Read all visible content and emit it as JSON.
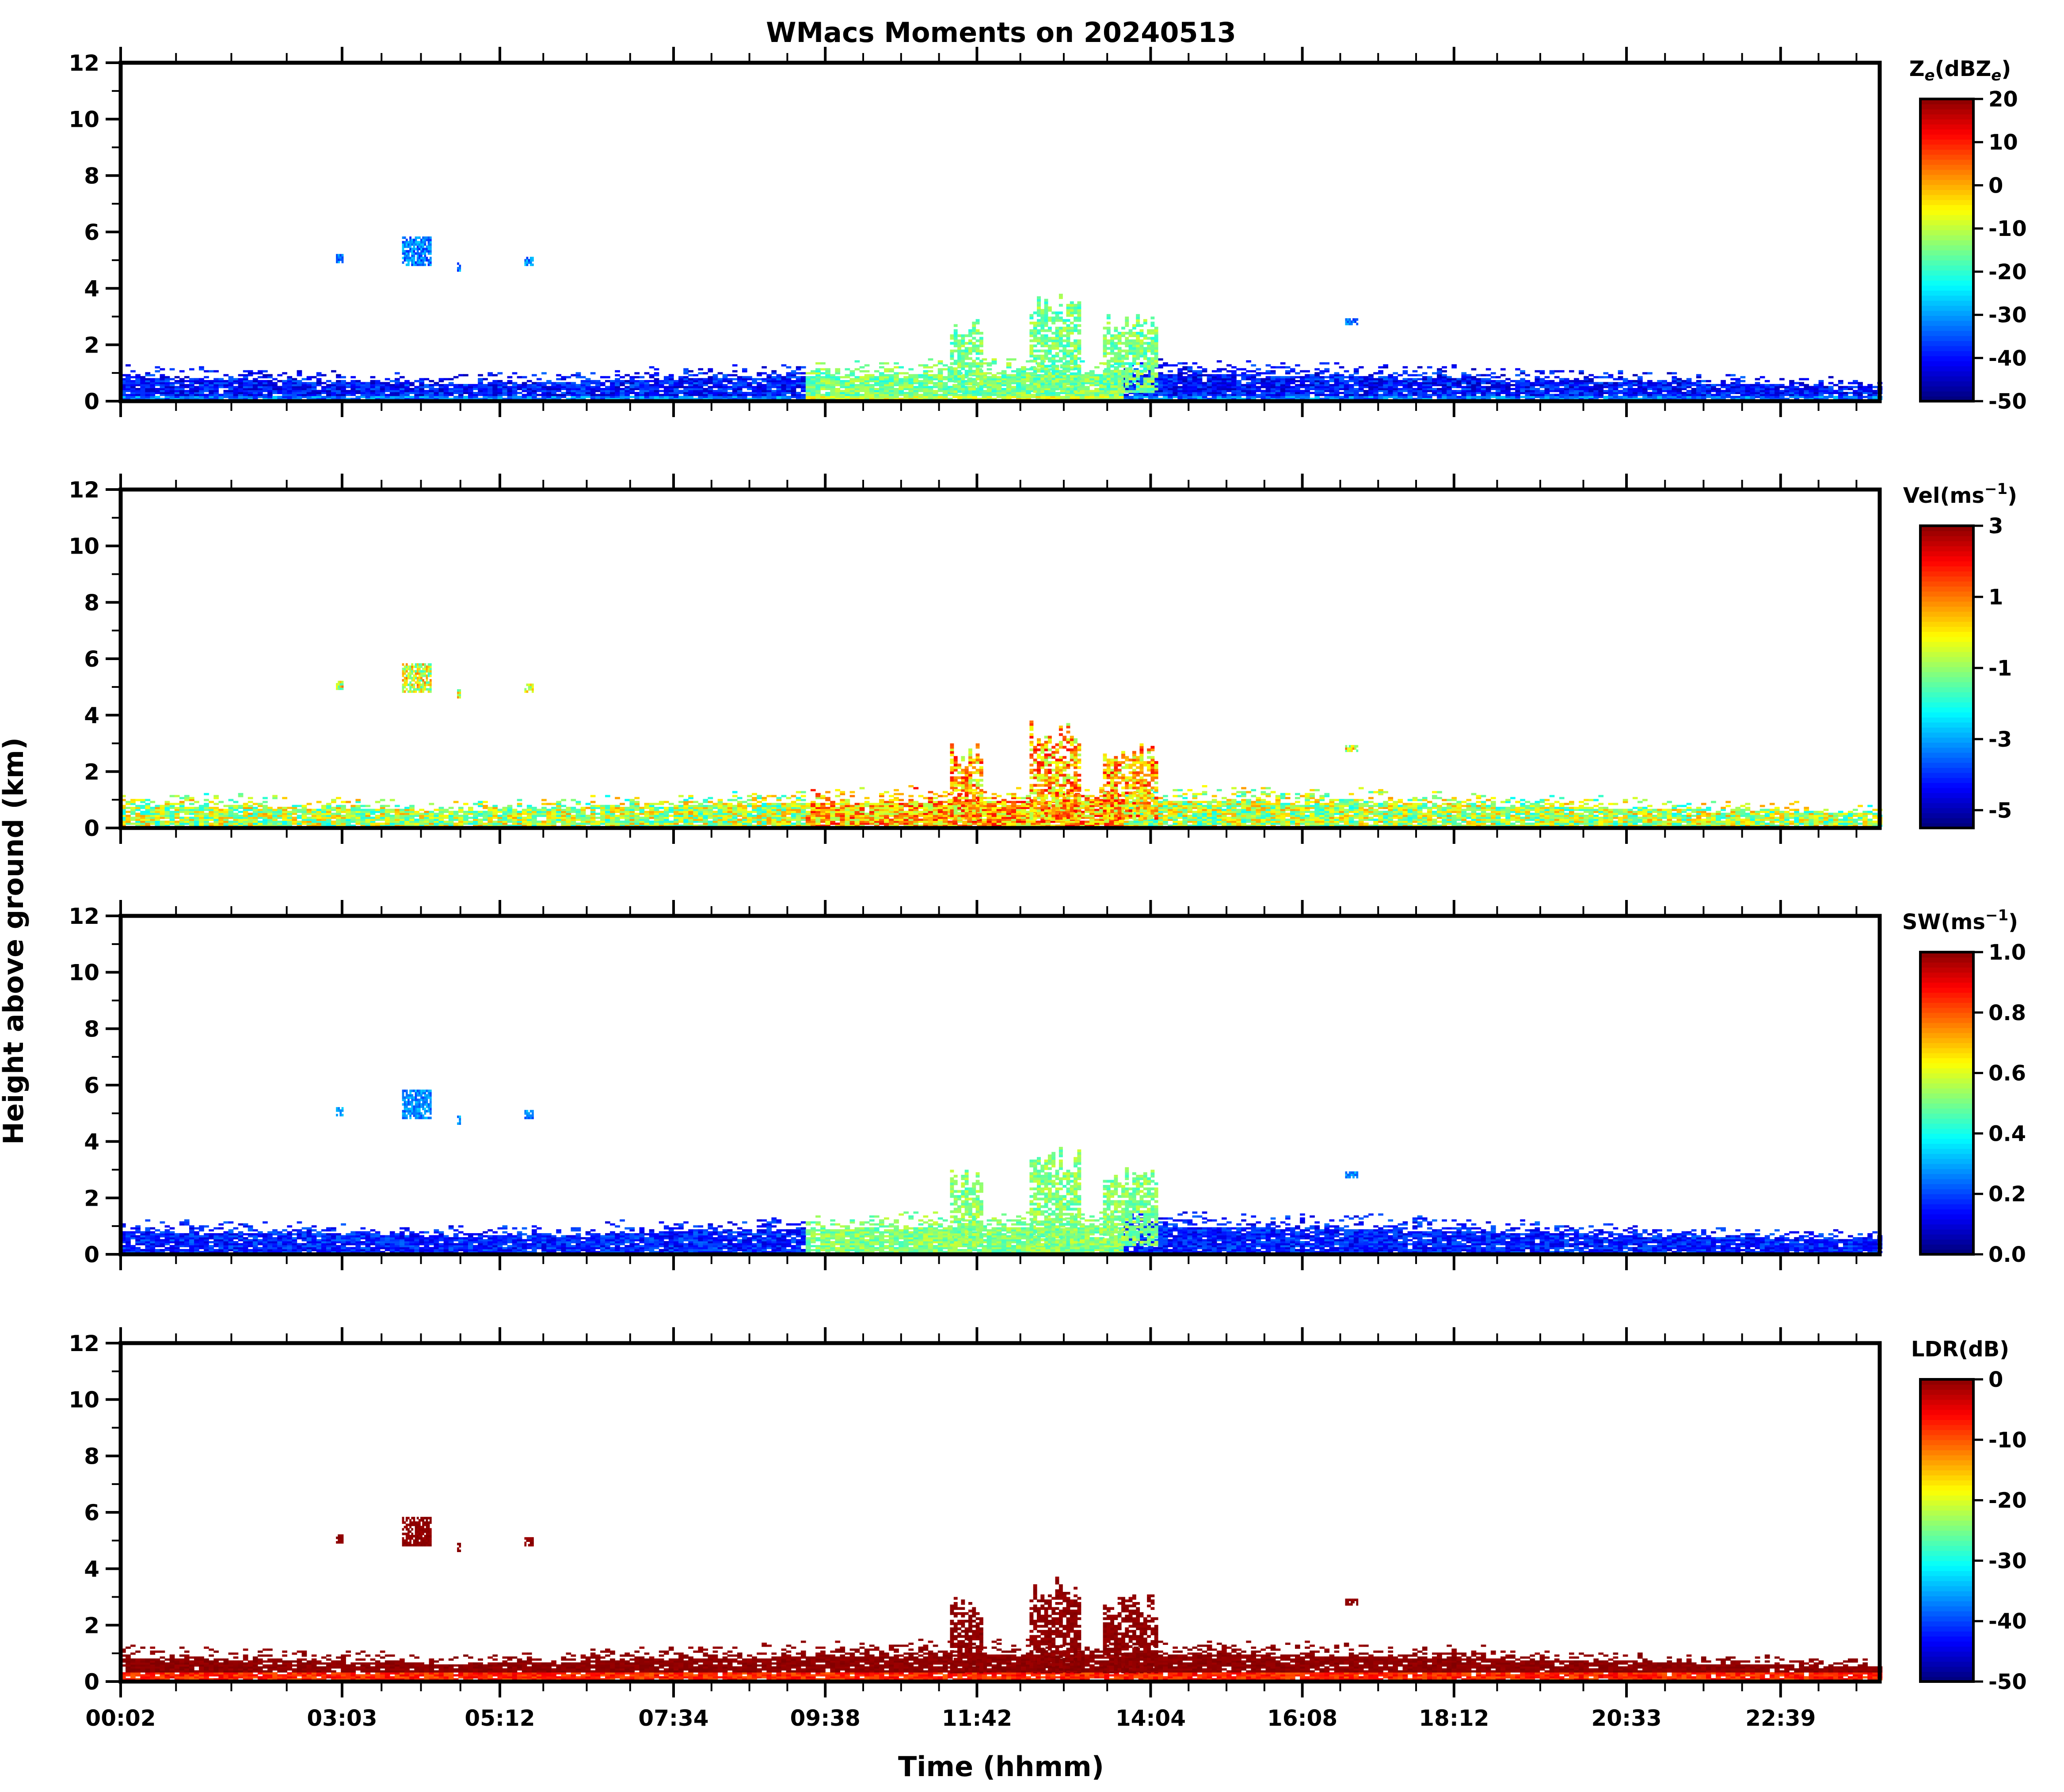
{
  "figure": {
    "title": "WMacs Moments on 20240513",
    "ylabel": "Height above ground (km)",
    "xlabel": "Time (hhmm)"
  },
  "chart_data": [
    {
      "type": "heatmap",
      "variable": "Ze",
      "colorbar_label_main": "Z",
      "colorbar_label_sub": "e",
      "colorbar_label_mid": "(dBZ",
      "colorbar_label_sub2": "e",
      "colorbar_label_end": ")",
      "colorbar_range": [
        -50,
        20
      ],
      "colorbar_ticks": [
        "20",
        "10",
        "0",
        "-10",
        "-20",
        "-30",
        "-40",
        "-50"
      ],
      "colorbar_tick_values": [
        20,
        10,
        0,
        -10,
        -20,
        -30,
        -40,
        -50
      ],
      "ylim": [
        0,
        12
      ],
      "yticks": [
        "0",
        "2",
        "4",
        "6",
        "8",
        "10",
        "12"
      ],
      "colormap": "jet",
      "pattern": "ze"
    },
    {
      "type": "heatmap",
      "variable": "Vel",
      "colorbar_label_main": "Vel(ms",
      "colorbar_label_sup": "−1",
      "colorbar_label_end": ")",
      "colorbar_range": [
        -5.5,
        3
      ],
      "colorbar_ticks": [
        "3",
        "1",
        "-1",
        "-3",
        "-5"
      ],
      "colorbar_tick_values": [
        3,
        1,
        -1,
        -3,
        -5
      ],
      "ylim": [
        0,
        12
      ],
      "yticks": [
        "0",
        "2",
        "4",
        "6",
        "8",
        "10",
        "12"
      ],
      "colormap": "jet",
      "pattern": "vel"
    },
    {
      "type": "heatmap",
      "variable": "SW",
      "colorbar_label_main": "SW(ms",
      "colorbar_label_sup": "−1",
      "colorbar_label_end": ")",
      "colorbar_range": [
        0,
        1
      ],
      "colorbar_ticks": [
        "1.0",
        "0.8",
        "0.6",
        "0.4",
        "0.2",
        "0.0"
      ],
      "colorbar_tick_values": [
        1.0,
        0.8,
        0.6,
        0.4,
        0.2,
        0.0
      ],
      "ylim": [
        0,
        12
      ],
      "yticks": [
        "0",
        "2",
        "4",
        "6",
        "8",
        "10",
        "12"
      ],
      "colormap": "jet",
      "pattern": "sw"
    },
    {
      "type": "heatmap",
      "variable": "LDR",
      "colorbar_label_main": "LDR(dB)",
      "colorbar_range": [
        -50,
        0
      ],
      "colorbar_ticks": [
        "0",
        "-10",
        "-20",
        "-30",
        "-40",
        "-50"
      ],
      "colorbar_tick_values": [
        0,
        -10,
        -20,
        -30,
        -40,
        -50
      ],
      "ylim": [
        0,
        12
      ],
      "yticks": [
        "0",
        "2",
        "4",
        "6",
        "8",
        "10",
        "12"
      ],
      "colormap": "jet",
      "pattern": "ldr"
    }
  ],
  "time_axis": {
    "range_minutes": [
      2,
      1440
    ],
    "tick_labels": [
      "00:02",
      "03:03",
      "05:12",
      "07:34",
      "09:38",
      "11:42",
      "14:04",
      "16:08",
      "18:12",
      "20:33",
      "22:39"
    ]
  }
}
